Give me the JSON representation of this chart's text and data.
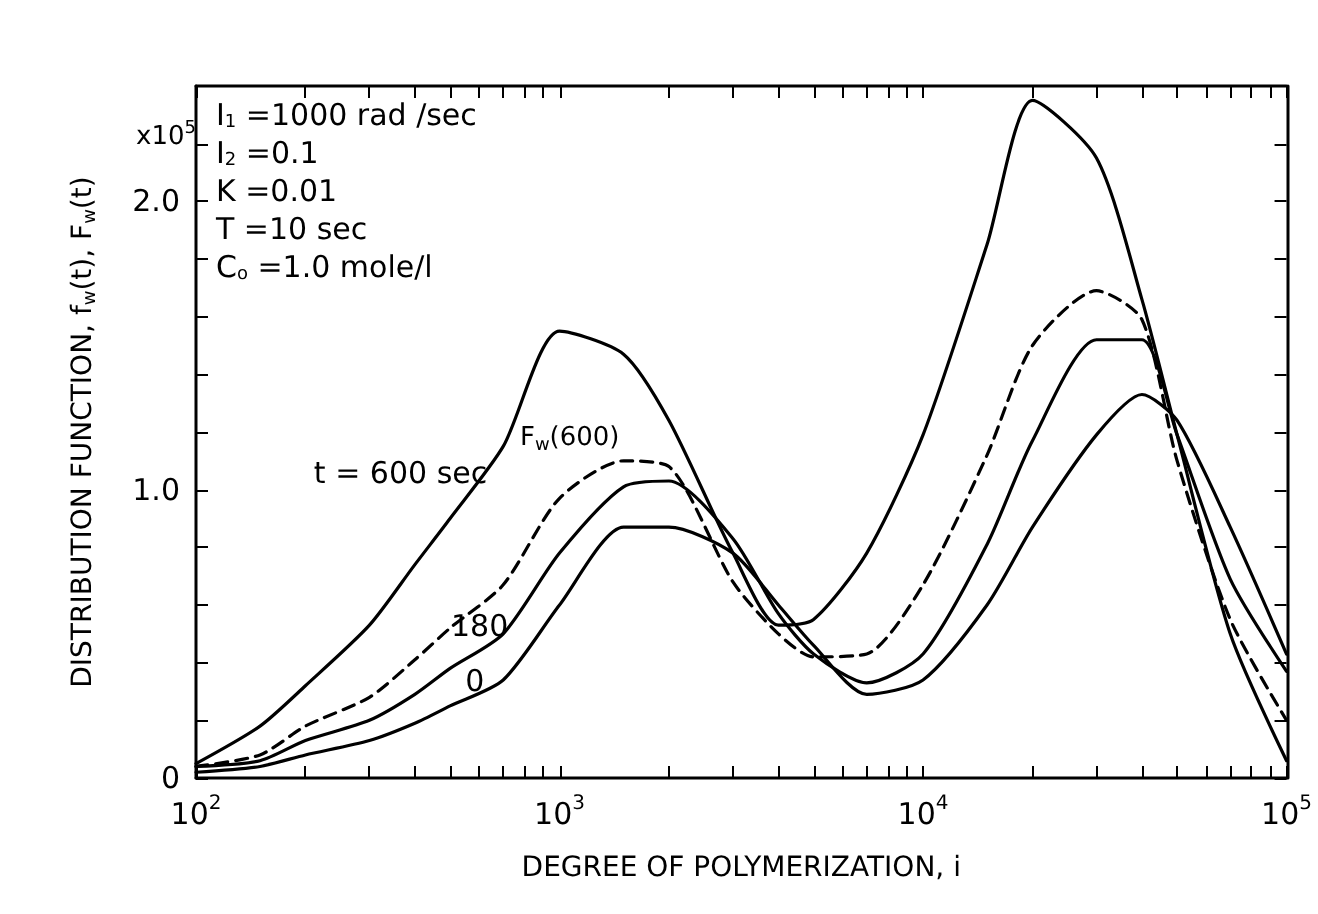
{
  "chart_data": {
    "type": "line",
    "xlabel": "DEGREE OF POLYMERIZATION, i",
    "ylabel": "DISTRIBUTION FUNCTION, f$_{w}$(t), F$_{w}$(t)",
    "log": "x",
    "grid": false,
    "marker": "none",
    "x": [
      100,
      150,
      200,
      300,
      400,
      500,
      700,
      1000,
      1500,
      2000,
      3000,
      4000,
      5000,
      7000,
      10000,
      15000,
      20000,
      30000,
      40000,
      50000,
      70000,
      100000
    ],
    "xlim": [
      100,
      100000
    ],
    "xticks": [
      {
        "value": 100,
        "label": "10$^{2}$"
      },
      {
        "value": 200,
        "label": null
      },
      {
        "value": 300,
        "label": null
      },
      {
        "value": 400,
        "label": null
      },
      {
        "value": 500,
        "label": null
      },
      {
        "value": 600,
        "label": null
      },
      {
        "value": 700,
        "label": null
      },
      {
        "value": 800,
        "label": null
      },
      {
        "value": 900,
        "label": null
      },
      {
        "value": 1000,
        "label": "10$^{3}$"
      },
      {
        "value": 2000,
        "label": null
      },
      {
        "value": 3000,
        "label": null
      },
      {
        "value": 4000,
        "label": null
      },
      {
        "value": 5000,
        "label": null
      },
      {
        "value": 6000,
        "label": null
      },
      {
        "value": 7000,
        "label": null
      },
      {
        "value": 8000,
        "label": null
      },
      {
        "value": 9000,
        "label": null
      },
      {
        "value": 10000,
        "label": "10$^{4}$"
      },
      {
        "value": 20000,
        "label": null
      },
      {
        "value": 30000,
        "label": null
      },
      {
        "value": 40000,
        "label": null
      },
      {
        "value": 50000,
        "label": null
      },
      {
        "value": 60000,
        "label": null
      },
      {
        "value": 70000,
        "label": null
      },
      {
        "value": 80000,
        "label": null
      },
      {
        "value": 90000,
        "label": null
      },
      {
        "value": 100000,
        "label": "10$^{5}$"
      }
    ],
    "ylim": [
      0,
      2.4
    ],
    "yticks": [
      0,
      {
        "value": 0.2,
        "label": null
      },
      {
        "value": 0.4,
        "label": null
      },
      {
        "value": 0.6,
        "label": null
      },
      {
        "value": 0.8,
        "label": null
      },
      {
        "value": 1,
        "label": "1.0"
      },
      {
        "value": 1.2,
        "label": null
      },
      {
        "value": 1.4,
        "label": null
      },
      {
        "value": 1.6,
        "label": null
      },
      {
        "value": 1.8,
        "label": null
      },
      {
        "value": 2,
        "label": "2.0"
      },
      {
        "value": 2.2,
        "label": null
      }
    ],
    "series": [
      {
        "color": "#000000",
        "line_style": "solid",
        "values": [
          0.05,
          0.18,
          0.32,
          0.53,
          0.74,
          0.9,
          1.15,
          1.55,
          1.47,
          1.24,
          0.78,
          0.53,
          0.55,
          0.78,
          1.19,
          1.85,
          2.35,
          2.15,
          1.66,
          1.19,
          0.5,
          0.06
        ]
      },
      {
        "color": "#000000",
        "line_style": "dashed",
        "values": [
          0.04,
          0.08,
          0.18,
          0.28,
          0.41,
          0.52,
          0.67,
          0.97,
          1.1,
          1.08,
          0.68,
          0.5,
          0.42,
          0.43,
          0.67,
          1.12,
          1.5,
          1.69,
          1.59,
          1.1,
          0.55,
          0.2
        ]
      },
      {
        "color": "#000000",
        "line_style": "solid",
        "values": [
          0.04,
          0.06,
          0.13,
          0.2,
          0.29,
          0.38,
          0.5,
          0.78,
          1.01,
          1.03,
          0.83,
          0.57,
          0.43,
          0.33,
          0.43,
          0.81,
          1.17,
          1.52,
          1.52,
          1.19,
          0.69,
          0.37
        ]
      },
      {
        "color": "#000000",
        "line_style": "solid",
        "values": [
          0.02,
          0.04,
          0.08,
          0.13,
          0.19,
          0.25,
          0.34,
          0.6,
          0.87,
          0.87,
          0.78,
          0.6,
          0.46,
          0.29,
          0.34,
          0.6,
          0.87,
          1.19,
          1.33,
          1.24,
          0.87,
          0.43
        ]
      }
    ],
    "annotations": [
      "x10$^{5}$",
      "I$_{1}$ =1000 rad /sec",
      "I$_{2}$ =0.1",
      "K =0.01",
      "T =10 sec",
      "C$_{o}$ =1.0 mole/l",
      {
        "text": "t = 600 sec",
        "x": 700,
        "y": 1.15
      },
      {
        "text": "F$_{w}$(600)",
        "x": 1500,
        "y": 1.1
      },
      {
        "text": "180",
        "x": 800,
        "y": 0.62
      },
      {
        "text": "0",
        "x": 800,
        "y": 0.47
      }
    ]
  }
}
